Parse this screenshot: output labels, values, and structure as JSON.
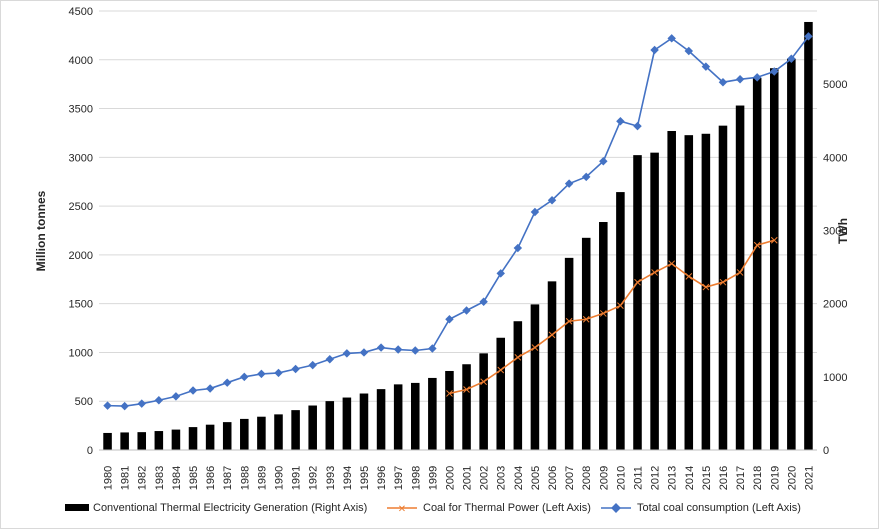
{
  "chart_data": {
    "type": "bar+line",
    "title": "",
    "categories": [
      "1980",
      "1981",
      "1982",
      "1983",
      "1984",
      "1985",
      "1986",
      "1987",
      "1988",
      "1989",
      "1990",
      "1991",
      "1992",
      "1993",
      "1994",
      "1995",
      "1996",
      "1997",
      "1998",
      "1999",
      "2000",
      "2001",
      "2002",
      "2003",
      "2004",
      "2005",
      "2006",
      "2007",
      "2008",
      "2009",
      "2010",
      "2011",
      "2012",
      "2013",
      "2014",
      "2015",
      "2016",
      "2017",
      "2018",
      "2019",
      "2020",
      "2021"
    ],
    "left_axis": {
      "label": "Million tonnes",
      "min": 0,
      "max": 4500,
      "ticks": [
        "0",
        "500",
        "1000",
        "1500",
        "2000",
        "2500",
        "3000",
        "3500",
        "4000",
        "4500"
      ]
    },
    "right_axis": {
      "label": "TWh",
      "min": 0,
      "max": 6000,
      "ticks": [
        "0",
        "1000",
        "2000",
        "3000",
        "4000",
        "5000"
      ]
    },
    "gridlines": true,
    "legend_position": "bottom",
    "series": [
      {
        "name": "Conventional Thermal Electricity Generation (Right Axis)",
        "kind": "bar",
        "axis": "right",
        "color": "#000000",
        "values": [
          233,
          240,
          244,
          259,
          279,
          313,
          346,
          381,
          425,
          455,
          487,
          545,
          608,
          668,
          717,
          772,
          832,
          897,
          917,
          985,
          1080,
          1172,
          1321,
          1534,
          1760,
          1990,
          2305,
          2626,
          2900,
          3116,
          3525,
          4030,
          4064,
          4360,
          4303,
          4322,
          4433,
          4708,
          5086,
          5218,
          5350,
          5850
        ]
      },
      {
        "name": "Coal for Thermal Power (Left Axis)",
        "kind": "line",
        "axis": "left",
        "color": "#ed7d31",
        "values": [
          null,
          null,
          null,
          null,
          null,
          null,
          null,
          null,
          null,
          null,
          null,
          null,
          null,
          null,
          null,
          null,
          null,
          null,
          null,
          null,
          580,
          620,
          700,
          820,
          950,
          1050,
          1180,
          1320,
          1340,
          1400,
          1480,
          1720,
          1820,
          1910,
          1780,
          1670,
          1720,
          1820,
          2100,
          2150,
          null,
          null
        ]
      },
      {
        "name": "Total coal consumption (Left Axis)",
        "kind": "line",
        "axis": "left",
        "color": "#4472c4",
        "values": [
          455,
          450,
          475,
          510,
          550,
          610,
          630,
          690,
          750,
          780,
          790,
          830,
          870,
          930,
          990,
          1000,
          1050,
          1030,
          1020,
          1040,
          1340,
          1430,
          1520,
          1810,
          2070,
          2440,
          2560,
          2730,
          2800,
          2960,
          3370,
          3320,
          4100,
          4220,
          4090,
          3930,
          3770,
          3800,
          3820,
          3880,
          4010,
          4240
        ]
      }
    ]
  }
}
